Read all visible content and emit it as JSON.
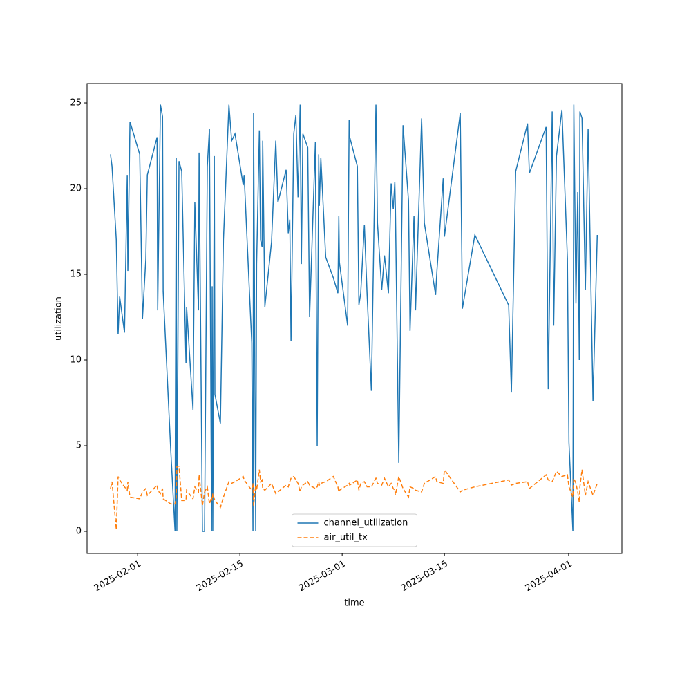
{
  "chart_data": {
    "type": "line",
    "xlabel": "time",
    "ylabel": "utilization",
    "x": [
      "2025-01-28T07:00",
      "2025-01-28T12:00",
      "2025-01-29T02:00",
      "2025-01-29T08:00",
      "2025-01-29T13:00",
      "2025-01-30T05:00",
      "2025-01-30T14:00",
      "2025-01-30T16:00",
      "2025-01-30T23:00",
      "2025-02-01T07:00",
      "2025-02-01T16:00",
      "2025-02-02T03:00",
      "2025-02-02T08:00",
      "2025-02-03T16:00",
      "2025-02-03T18:00",
      "2025-02-04T03:00",
      "2025-02-04T10:00",
      "2025-02-04T12:00",
      "2025-02-05T13:00",
      "2025-02-06T03:00",
      "2025-02-06T07:00",
      "2025-02-06T09:00",
      "2025-02-06T16:00",
      "2025-02-07T01:00",
      "2025-02-07T15:00",
      "2025-02-07T17:00",
      "2025-02-08T14:00",
      "2025-02-08T20:00",
      "2025-02-09T08:00",
      "2025-02-09T10:00",
      "2025-02-09T21:00",
      "2025-02-10T04:00",
      "2025-02-10T13:00",
      "2025-02-10T20:00",
      "2025-02-11T03:00",
      "2025-02-11T05:00",
      "2025-02-11T07:00",
      "2025-02-11T12:00",
      "2025-02-11T14:00",
      "2025-02-12T08:00",
      "2025-02-12T18:00",
      "2025-02-13T12:00",
      "2025-02-13T21:00",
      "2025-02-14T08:00",
      "2025-02-15T11:00",
      "2025-02-15T14:00",
      "2025-02-16T15:00",
      "2025-02-16T19:00",
      "2025-02-16T21:00",
      "2025-02-17T04:00",
      "2025-02-17T07:00",
      "2025-02-17T16:00",
      "2025-02-17T20:00",
      "2025-02-18T01:00",
      "2025-02-18T03:00",
      "2025-02-18T10:00",
      "2025-02-19T08:00",
      "2025-02-19T22:00",
      "2025-02-20T05:00",
      "2025-02-21T08:00",
      "2025-02-21T15:00",
      "2025-02-21T20:00",
      "2025-02-22T00:00",
      "2025-02-22T09:00",
      "2025-02-22T16:00",
      "2025-02-22T23:00",
      "2025-02-23T06:00",
      "2025-02-23T10:00",
      "2025-02-23T15:00",
      "2025-02-24T07:00",
      "2025-02-24T13:00",
      "2025-02-25T08:00",
      "2025-02-25T14:00",
      "2025-02-25T19:00",
      "2025-02-25T21:00",
      "2025-02-26T02:00",
      "2025-02-26T18:00",
      "2025-02-27T19:00",
      "2025-02-28T10:00",
      "2025-02-28T13:00",
      "2025-02-28T15:00",
      "2025-03-01T18:00",
      "2025-03-01T23:00",
      "2025-03-02T01:00",
      "2025-03-03T02:00",
      "2025-03-03T07:00",
      "2025-03-03T13:00",
      "2025-03-04T01:00",
      "2025-03-04T10:00",
      "2025-03-05T00:00",
      "2025-03-05T15:00",
      "2025-03-05T20:00",
      "2025-03-06T10:00",
      "2025-03-06T19:00",
      "2025-03-07T08:00",
      "2025-03-07T17:00",
      "2025-03-08T00:00",
      "2025-03-08T05:00",
      "2025-03-08T07:00",
      "2025-03-08T18:00",
      "2025-03-09T08:00",
      "2025-03-10T02:00",
      "2025-03-10T07:00",
      "2025-03-10T20:00",
      "2025-03-11T01:00",
      "2025-03-11T21:00",
      "2025-03-12T06:00",
      "2025-03-13T19:00",
      "2025-03-13T23:00",
      "2025-03-14T20:00",
      "2025-03-15T00:00",
      "2025-03-17T04:00",
      "2025-03-17T11:00",
      "2025-03-19T04:00",
      "2025-03-23T19:00",
      "2025-03-24T04:00",
      "2025-03-24T18:00",
      "2025-03-26T09:00",
      "2025-03-26T15:00",
      "2025-03-28T22:00",
      "2025-03-29T05:00",
      "2025-03-29T18:00",
      "2025-03-29T23:00",
      "2025-03-30T08:00",
      "2025-03-31T02:00",
      "2025-03-31T20:00",
      "2025-04-01T01:00",
      "2025-04-01T14:00",
      "2025-04-01T17:00",
      "2025-04-02T00:00",
      "2025-04-02T06:00",
      "2025-04-02T11:00",
      "2025-04-02T13:00",
      "2025-04-02T20:00",
      "2025-04-03T07:00",
      "2025-04-03T16:00",
      "2025-04-04T08:00",
      "2025-04-04T22:00"
    ],
    "series": [
      {
        "name": "channel_utilization",
        "color": "#1f77b4",
        "linestyle": "solid",
        "values": [
          22.0,
          21.3,
          17,
          11.5,
          13.7,
          11.6,
          20.8,
          15.2,
          23.9,
          22.0,
          12.4,
          15.9,
          20.8,
          23.0,
          12.9,
          24.9,
          24.2,
          14.0,
          4.7,
          0,
          21.8,
          0,
          21.6,
          21.0,
          9.8,
          13.1,
          7.1,
          19.2,
          12.9,
          22.1,
          0,
          0,
          21.3,
          23.5,
          0,
          14.3,
          0,
          21.9,
          8.0,
          6.3,
          17,
          24.9,
          22.8,
          23.2,
          20.2,
          20.8,
          11,
          0,
          24.4,
          0,
          15.6,
          23.4,
          17,
          16.6,
          22.8,
          13.1,
          16.9,
          22.8,
          19.2,
          21.1,
          17.4,
          18.2,
          11.1,
          23.2,
          24.3,
          19.5,
          24.9,
          15.6,
          23.2,
          22.4,
          12.5,
          22.7,
          5.0,
          22.0,
          19,
          21.8,
          16.0,
          14.8,
          13.9,
          18.4,
          15.7,
          12.0,
          24.0,
          23.0,
          21.3,
          13.2,
          13.9,
          17.9,
          13.8,
          8.2,
          24.9,
          18,
          14.1,
          16.1,
          13.9,
          20.3,
          18.8,
          20.4,
          18.8,
          4.0,
          23.7,
          19.3,
          11.7,
          18.4,
          12.9,
          24.1,
          18,
          13.8,
          15.1,
          20.6,
          17.2,
          24.4,
          13.0,
          17.3,
          13.2,
          8.1,
          21.0,
          23.8,
          20.9,
          23.6,
          8.3,
          24.5,
          12.0,
          21.9,
          24.6,
          15.9,
          5.2,
          0,
          24.9,
          13.3,
          19.8,
          10.0,
          24.5,
          24.1,
          14.1,
          23.5,
          7.6,
          17.3
        ]
      },
      {
        "name": "air_util_tx",
        "color": "#ff7f0e",
        "linestyle": "dashed",
        "values": [
          2.5,
          2.9,
          0.1,
          3.2,
          3.0,
          2.6,
          2.4,
          2.9,
          2.0,
          1.9,
          2.3,
          2.5,
          2.1,
          2.7,
          2.4,
          2.2,
          2.5,
          1.9,
          1.6,
          1.6,
          2.0,
          3.8,
          3.8,
          1.8,
          1.8,
          2.4,
          1.9,
          2.6,
          2.3,
          3.3,
          1.5,
          2.3,
          2.6,
          1.6,
          2.0,
          1.8,
          2.2,
          1.9,
          1.8,
          1.4,
          2.0,
          2.9,
          2.8,
          2.9,
          3.2,
          3.0,
          2.4,
          2.8,
          1.5,
          2.7,
          2.4,
          3.6,
          2.9,
          3.0,
          2.5,
          2.4,
          2.8,
          2.2,
          2.3,
          2.7,
          2.6,
          2.9,
          3.1,
          3.2,
          3.0,
          2.8,
          2.3,
          2.6,
          2.7,
          2.9,
          2.7,
          2.5,
          2.6,
          2.9,
          2.7,
          2.8,
          2.9,
          3.2,
          2.6,
          2.3,
          2.4,
          2.7,
          2.8,
          2.7,
          3.0,
          2.4,
          2.8,
          2.9,
          2.6,
          2.6,
          3.1,
          2.8,
          2.7,
          3.1,
          2.6,
          2.8,
          2.5,
          2.4,
          2.1,
          3.2,
          2.5,
          2.0,
          2.6,
          2.5,
          2.4,
          2.3,
          2.8,
          3.2,
          2.9,
          2.8,
          3.6,
          2.3,
          2.4,
          2.6,
          3.0,
          2.7,
          2.8,
          2.9,
          2.5,
          3.3,
          3.0,
          2.9,
          3.1,
          3.5,
          3.2,
          3.3,
          2.6,
          2.0,
          3.1,
          2.8,
          2.3,
          1.7,
          2.6,
          3.6,
          2.1,
          2.9,
          2.1,
          2.8
        ]
      }
    ],
    "xlim": [
      "2025-01-25T02:00",
      "2025-04-08T07:00"
    ],
    "xticks": [
      "2025-02-01",
      "2025-02-15",
      "2025-03-01",
      "2025-03-15",
      "2025-04-01"
    ],
    "ylim": [
      -1.29,
      26.13
    ],
    "yticks": [
      0,
      5,
      10,
      15,
      20,
      25
    ],
    "legend": "lower center"
  }
}
